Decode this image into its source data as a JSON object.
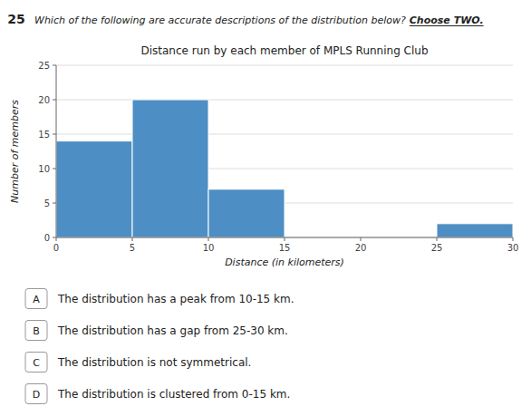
{
  "chart_data": {
    "type": "histogram",
    "title": "Distance run by each member of MPLS Running Club",
    "x_label": "Distance (in kilometers)",
    "y_label": "Number of members",
    "bins": [
      0,
      5,
      10,
      15,
      20,
      25,
      30
    ],
    "values": [
      14,
      20,
      7,
      0,
      0,
      2
    ],
    "color": "#4d8fc4",
    "xlim": [
      0,
      30
    ],
    "ylim": [
      0,
      25
    ],
    "xticks": [
      0,
      5,
      10,
      15,
      20,
      25,
      30
    ],
    "yticks": [
      0,
      5,
      10,
      15,
      20,
      25
    ],
    "grid": true,
    "annotations": [
      "25",
      "Which of the following are accurate descriptions of the distribution below?  ",
      "Choose TWO.",
      "A",
      "The distribution has a peak from 10-15 km.",
      "B",
      "The distribution has a gap from 25-30 km.",
      "C",
      "The distribution is not symmetrical.",
      "D",
      "The distribution is clustered from 0-15 km."
    ]
  }
}
